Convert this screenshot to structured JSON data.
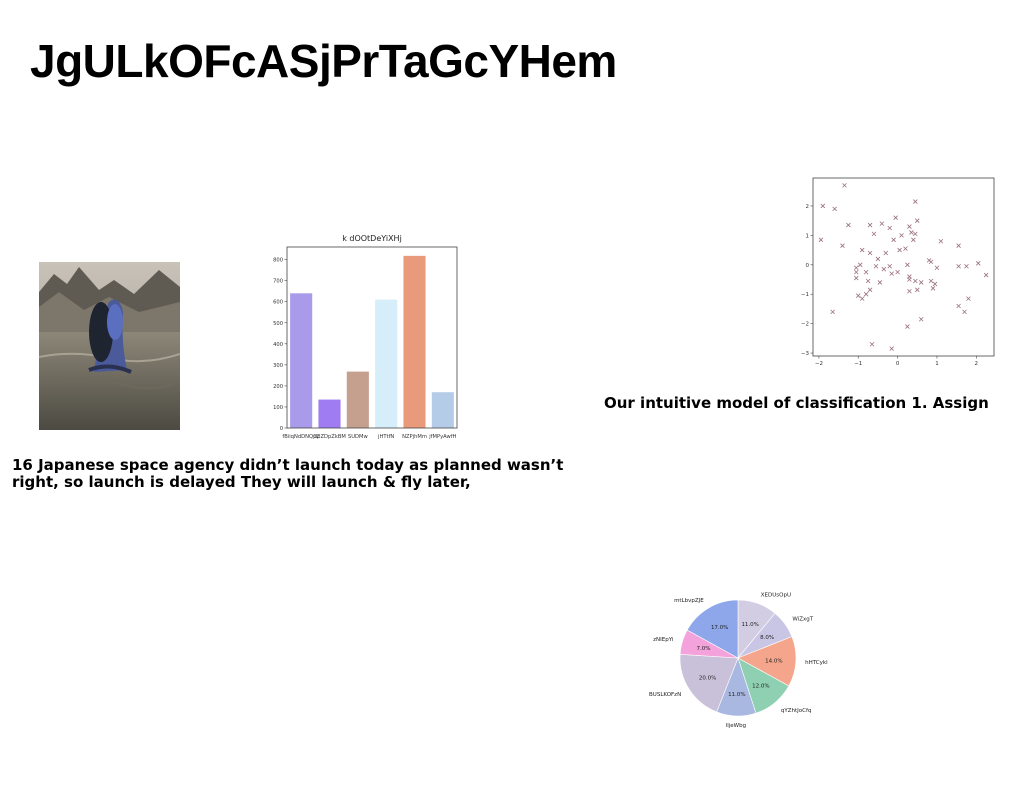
{
  "page": {
    "title": "JgULkOFcASjPrTaGcYHem",
    "caption_left": "16 Japanese space agency didn’t launch today as planned wasn’t right, so launch is delayed They will launch & fly later,",
    "caption_right": "Our intuitive model of classification 1. Assign"
  },
  "photo": {
    "subject": "person-in-water-mountains"
  },
  "chart_data": [
    {
      "type": "bar",
      "title": "k dOOtDeYiXHj",
      "categories": [
        "fBiiqNdDNQpZ",
        "OpZDpZkBM",
        "SUDMw",
        "jHTtfN",
        "NZPjhMm",
        "jfMPyAwfH"
      ],
      "values": [
        640,
        135,
        268,
        610,
        818,
        170
      ],
      "colors": [
        "#a99be9",
        "#9f7cf2",
        "#c6a08e",
        "#d6eefa",
        "#e99a7b",
        "#b5cce8"
      ],
      "ylim": [
        0,
        860
      ],
      "yticks": [
        0,
        100,
        200,
        300,
        400,
        500,
        600,
        700,
        800
      ]
    },
    {
      "type": "scatter",
      "marker": "x",
      "color": "#9a6f7a",
      "xlim": [
        -2.15,
        2.45
      ],
      "ylim": [
        -3.1,
        2.95
      ],
      "xticks": [
        -2,
        -1,
        0,
        1,
        2
      ],
      "yticks": [
        -3,
        -2,
        -1,
        0,
        1,
        2
      ],
      "points": [
        [
          -1.35,
          2.7
        ],
        [
          -1.9,
          2.0
        ],
        [
          -1.6,
          1.9
        ],
        [
          0.45,
          2.15
        ],
        [
          0.5,
          1.5
        ],
        [
          -0.05,
          1.6
        ],
        [
          -1.25,
          1.35
        ],
        [
          -0.7,
          1.35
        ],
        [
          -0.4,
          1.4
        ],
        [
          0.3,
          1.3
        ],
        [
          -0.2,
          1.25
        ],
        [
          0.35,
          1.1
        ],
        [
          0.45,
          1.05
        ],
        [
          -0.6,
          1.05
        ],
        [
          0.1,
          1.0
        ],
        [
          1.1,
          0.8
        ],
        [
          -1.95,
          0.85
        ],
        [
          -0.1,
          0.85
        ],
        [
          0.4,
          0.85
        ],
        [
          -1.4,
          0.65
        ],
        [
          -0.9,
          0.5
        ],
        [
          -0.7,
          0.4
        ],
        [
          1.55,
          0.65
        ],
        [
          -0.3,
          0.4
        ],
        [
          0.05,
          0.5
        ],
        [
          0.2,
          0.55
        ],
        [
          -0.5,
          0.2
        ],
        [
          0.8,
          0.15
        ],
        [
          0.85,
          0.1
        ],
        [
          -1.05,
          -0.1
        ],
        [
          -0.95,
          0.0
        ],
        [
          -0.55,
          -0.05
        ],
        [
          -0.2,
          -0.05
        ],
        [
          0.25,
          0.0
        ],
        [
          1.0,
          -0.1
        ],
        [
          1.55,
          -0.05
        ],
        [
          1.75,
          -0.05
        ],
        [
          2.05,
          0.05
        ],
        [
          -1.05,
          -0.25
        ],
        [
          -1.05,
          -0.45
        ],
        [
          -0.8,
          -0.25
        ],
        [
          -0.35,
          -0.15
        ],
        [
          -0.15,
          -0.3
        ],
        [
          0.0,
          -0.25
        ],
        [
          0.3,
          -0.4
        ],
        [
          0.45,
          -0.55
        ],
        [
          0.6,
          -0.6
        ],
        [
          -0.75,
          -0.55
        ],
        [
          -0.45,
          -0.6
        ],
        [
          0.3,
          -0.5
        ],
        [
          0.85,
          -0.55
        ],
        [
          0.95,
          -0.65
        ],
        [
          0.9,
          -0.8
        ],
        [
          0.5,
          -0.85
        ],
        [
          0.3,
          -0.9
        ],
        [
          -0.7,
          -0.85
        ],
        [
          -1.0,
          -1.05
        ],
        [
          -0.9,
          -1.15
        ],
        [
          -0.8,
          -1.0
        ],
        [
          2.25,
          -0.35
        ],
        [
          1.8,
          -1.15
        ],
        [
          1.55,
          -1.4
        ],
        [
          1.7,
          -1.6
        ],
        [
          -1.65,
          -1.6
        ],
        [
          0.6,
          -1.85
        ],
        [
          0.25,
          -2.1
        ],
        [
          -0.65,
          -2.7
        ],
        [
          -0.15,
          -2.85
        ]
      ]
    },
    {
      "type": "pie",
      "slices": [
        {
          "label": "XEDUsOpU",
          "value": 11.0,
          "color": "#d2cde3"
        },
        {
          "label": "WiZxgT",
          "value": 8.0,
          "color": "#c9c5e4"
        },
        {
          "label": "hHTCykl",
          "value": 14.0,
          "color": "#f4a58b"
        },
        {
          "label": "qYZhtJoCfq",
          "value": 12.0,
          "color": "#8fd0b2"
        },
        {
          "label": "lljeWbg",
          "value": 11.0,
          "color": "#a9b8e0"
        },
        {
          "label": "BUSLKOFzN",
          "value": 20.0,
          "color": "#c9c1d9"
        },
        {
          "label": "zNIEpYi",
          "value": 7.0,
          "color": "#f4a2dc"
        },
        {
          "label": "mtLbvpZJE",
          "value": 17.0,
          "color": "#8ea6ea"
        }
      ]
    }
  ]
}
